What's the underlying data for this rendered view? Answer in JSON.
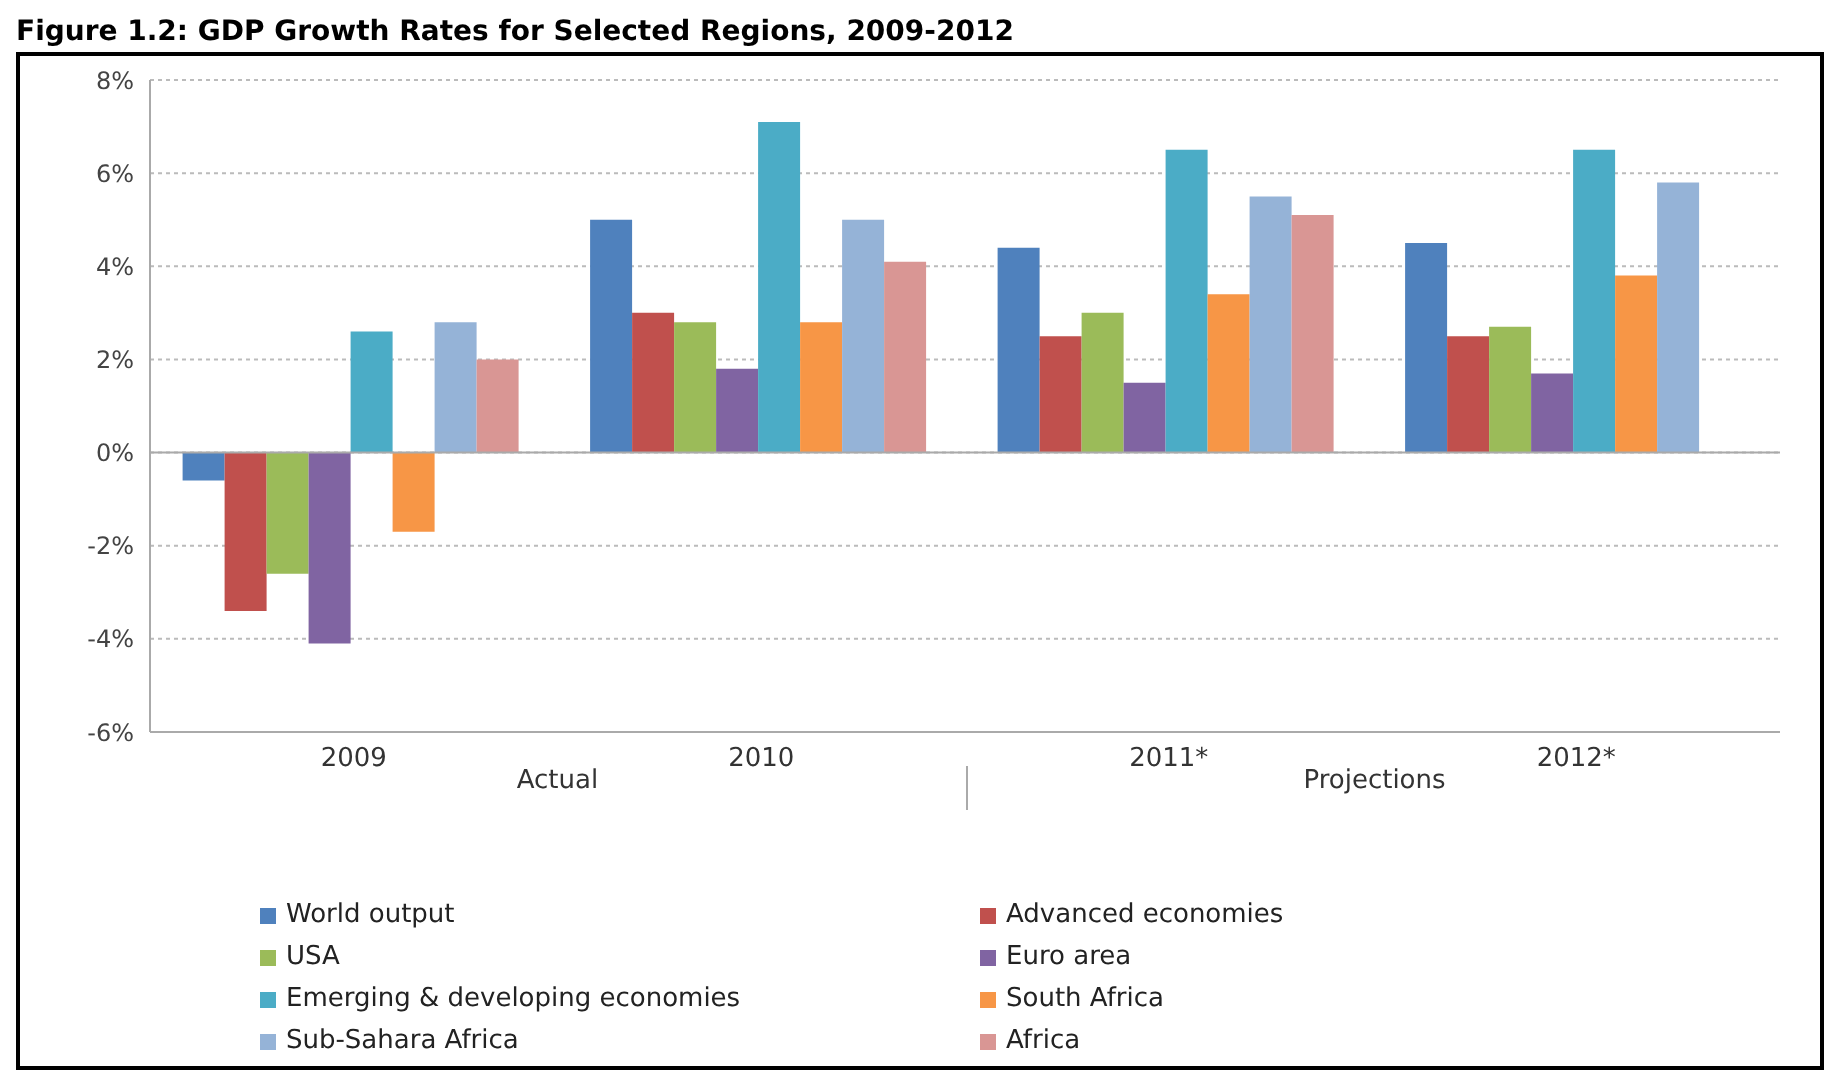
{
  "chart_data": {
    "type": "bar",
    "title": "Figure 1.2: GDP Growth Rates for Selected Regions, 2009-2012",
    "categories": [
      "2009",
      "2010",
      "2011*",
      "2012*"
    ],
    "series": [
      {
        "name": "World output",
        "color": "#4f81bd",
        "values": [
          -0.6,
          5.0,
          4.4,
          4.5
        ]
      },
      {
        "name": "Advanced economies",
        "color": "#c0504d",
        "values": [
          -3.4,
          3.0,
          2.5,
          2.5
        ]
      },
      {
        "name": "USA",
        "color": "#9bbb59",
        "values": [
          -2.6,
          2.8,
          3.0,
          2.7
        ]
      },
      {
        "name": "Euro area",
        "color": "#8064a2",
        "values": [
          -4.1,
          1.8,
          1.5,
          1.7
        ]
      },
      {
        "name": "Emerging & developing economies",
        "color": "#4bacc6",
        "values": [
          2.6,
          7.1,
          6.5,
          6.5
        ]
      },
      {
        "name": "South Africa",
        "color": "#f79646",
        "values": [
          -1.7,
          2.8,
          3.4,
          3.8
        ]
      },
      {
        "name": "Sub-Sahara Africa",
        "color": "#95b3d7",
        "values": [
          2.8,
          5.0,
          5.5,
          5.8
        ]
      },
      {
        "name": "Africa",
        "color": "#d99694",
        "values": [
          2.0,
          4.1,
          5.1,
          null
        ]
      }
    ],
    "annotations": [
      "Actual",
      "Projections"
    ],
    "ylim": [
      -6,
      8
    ],
    "yticks": [
      {
        "value": -6,
        "label": "-6%"
      },
      {
        "value": -4,
        "label": "-4%"
      },
      {
        "value": -2,
        "label": "-2%"
      },
      {
        "value": 0,
        "label": "0%"
      },
      {
        "value": 2,
        "label": "2%"
      },
      {
        "value": 4,
        "label": "4%"
      },
      {
        "value": 6,
        "label": "6%"
      },
      {
        "value": 8,
        "label": "8%"
      }
    ],
    "grid": "y",
    "legend": "bottom"
  }
}
